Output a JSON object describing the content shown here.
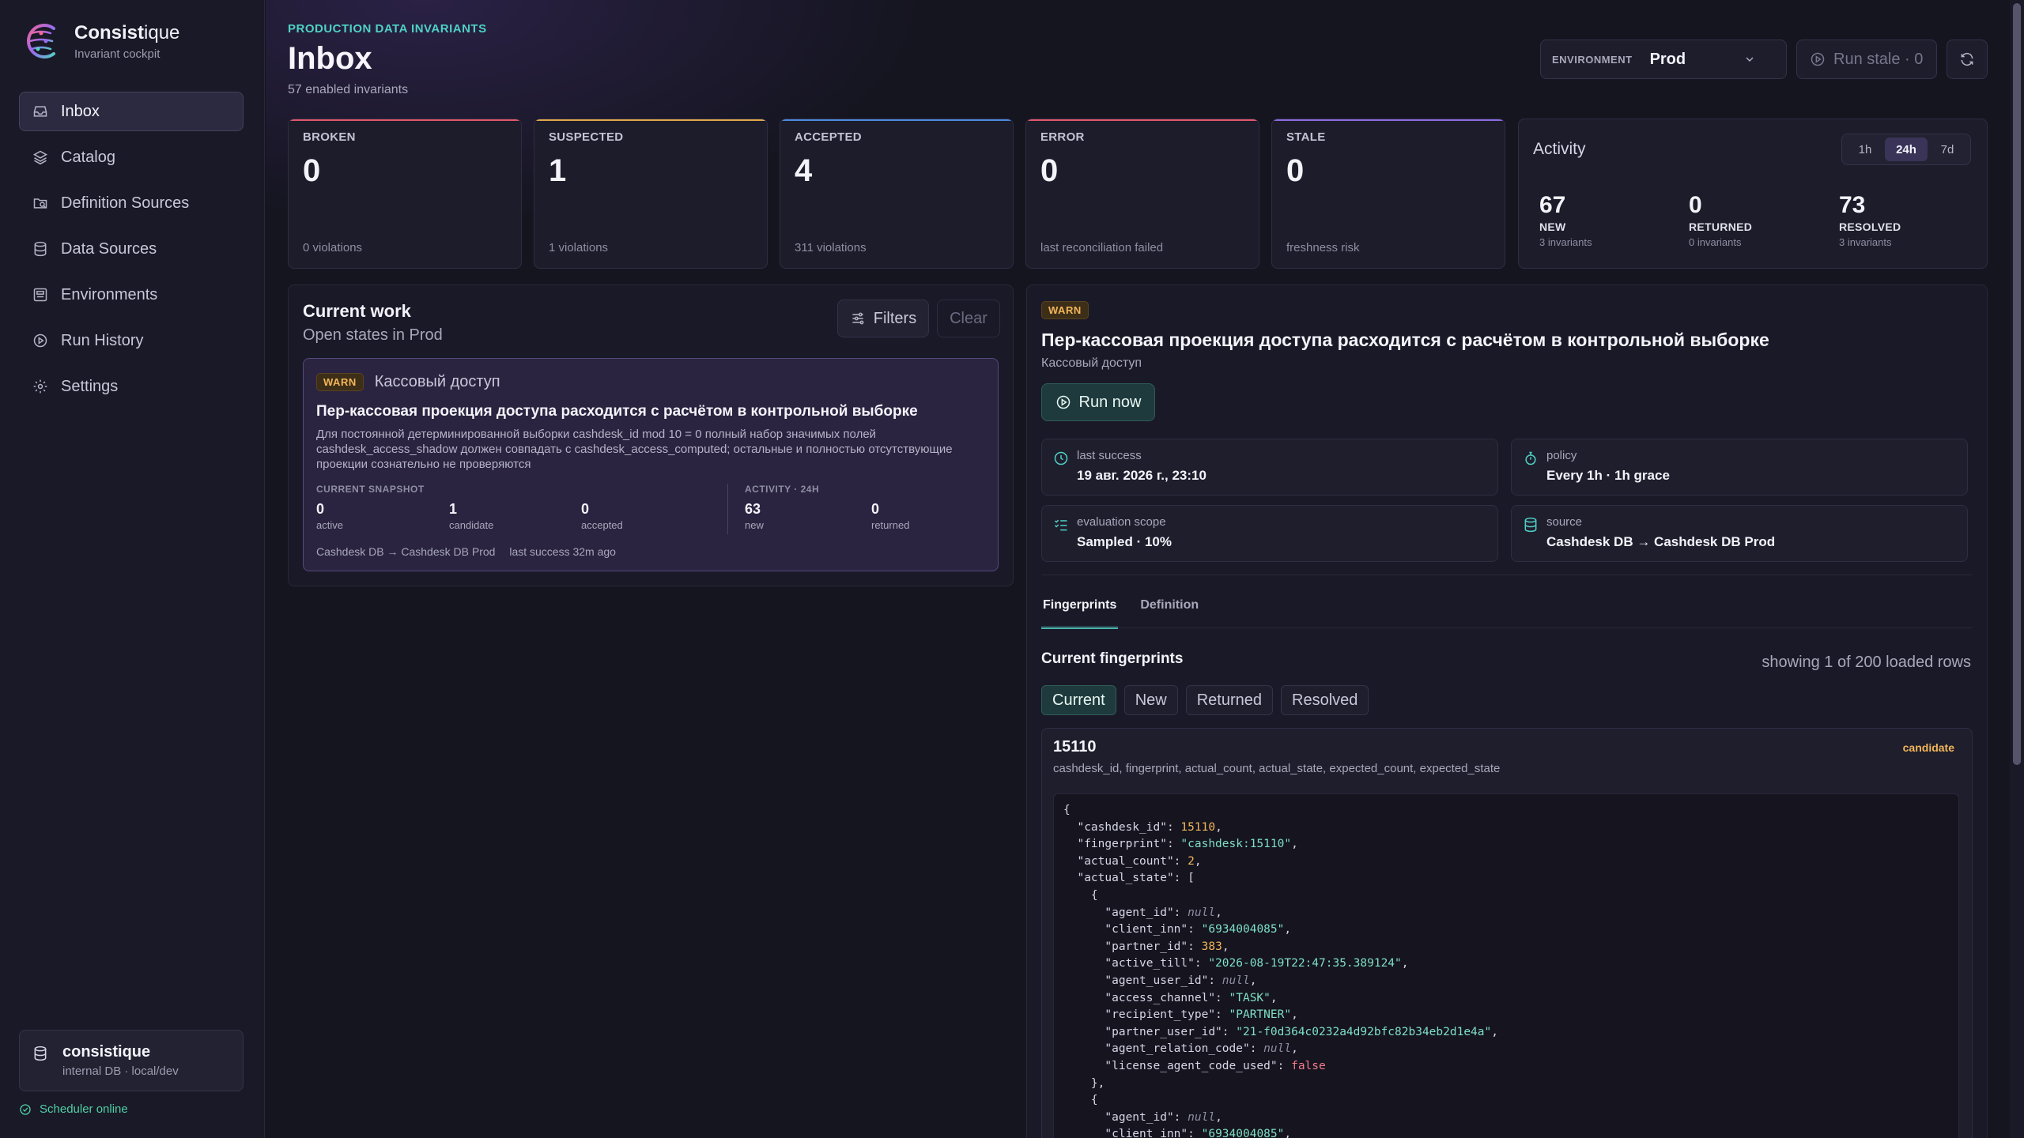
{
  "brand": {
    "name_bold": "Consist",
    "name_rest": "ique",
    "subtitle": "Invariant cockpit"
  },
  "sidebar": {
    "items": [
      {
        "label": "Inbox",
        "icon": "inbox-icon",
        "active": true
      },
      {
        "label": "Catalog",
        "icon": "layers-icon"
      },
      {
        "label": "Definition Sources",
        "icon": "folder-search-icon"
      },
      {
        "label": "Data Sources",
        "icon": "database-icon"
      },
      {
        "label": "Environments",
        "icon": "server-icon"
      },
      {
        "label": "Run History",
        "icon": "play-circle-icon"
      },
      {
        "label": "Settings",
        "icon": "gear-icon"
      }
    ],
    "db": {
      "title": "consistique",
      "subtitle": "internal DB · local/dev"
    },
    "scheduler": "Scheduler online"
  },
  "header": {
    "eyebrow": "PRODUCTION DATA INVARIANTS",
    "title": "Inbox",
    "subtitle": "57 enabled invariants",
    "env_label": "ENVIRONMENT",
    "env_value": "Prod",
    "run_stale": "Run stale · 0"
  },
  "stats": [
    {
      "label": "BROKEN",
      "value": "0",
      "foot": "0 violations",
      "accent": "#e0566b"
    },
    {
      "label": "SUSPECTED",
      "value": "1",
      "foot": "1 violations",
      "accent": "#e0a84a"
    },
    {
      "label": "ACCEPTED",
      "value": "4",
      "foot": "311 violations",
      "accent": "#4a8ae0"
    },
    {
      "label": "ERROR",
      "value": "0",
      "foot": "last reconciliation failed",
      "accent": "#e0566b"
    },
    {
      "label": "STALE",
      "value": "0",
      "foot": "freshness risk",
      "accent": "#8a6ae0"
    }
  ],
  "activity": {
    "title": "Activity",
    "ranges": [
      "1h",
      "24h",
      "7d"
    ],
    "selected_range": "24h",
    "columns": [
      {
        "value": "67",
        "label": "NEW",
        "sub": "3 invariants"
      },
      {
        "value": "0",
        "label": "RETURNED",
        "sub": "0 invariants"
      },
      {
        "value": "73",
        "label": "RESOLVED",
        "sub": "3 invariants"
      }
    ]
  },
  "work": {
    "title": "Current work",
    "subtitle": "Open states in Prod",
    "filters": "Filters",
    "clear": "Clear",
    "item": {
      "badge": "WARN",
      "category": "Кассовый доступ",
      "title": "Пер-кассовая проекция доступа расходится с расчётом в контрольной выборке",
      "description": "Для постоянной детерминированной выборки cashdesk_id mod 10 = 0 полный набор значимых полей cashdesk_access_shadow должен совпадать с cashdesk_access_computed; остальные и полностью отсутствующие проекции сознательно не проверяются",
      "snapshot_label": "CURRENT SNAPSHOT",
      "snapshot": [
        {
          "value": "0",
          "label": "active"
        },
        {
          "value": "1",
          "label": "candidate"
        },
        {
          "value": "0",
          "label": "accepted"
        }
      ],
      "activity_label": "ACTIVITY · 24H",
      "activity": [
        {
          "value": "63",
          "label": "new"
        },
        {
          "value": "0",
          "label": "returned"
        }
      ],
      "source": "Cashdesk DB → Cashdesk DB Prod",
      "last_success": "last success 32m ago"
    }
  },
  "detail": {
    "badge": "WARN",
    "title": "Пер-кассовая проекция доступа расходится с расчётом в контрольной выборке",
    "category": "Кассовый доступ",
    "run_now": "Run now",
    "meta": [
      {
        "label": "last success",
        "value": "19 авг. 2026 г., 23:10",
        "icon": "clock-icon"
      },
      {
        "label": "policy",
        "value": "Every 1h · 1h grace",
        "icon": "timer-icon"
      },
      {
        "label": "evaluation scope",
        "value": "Sampled · 10%",
        "icon": "list-check-icon"
      },
      {
        "label": "source",
        "value": "Cashdesk DB → Cashdesk DB Prod",
        "icon": "database-icon"
      }
    ],
    "tabs": [
      "Fingerprints",
      "Definition"
    ],
    "active_tab": "Fingerprints",
    "fingerprints": {
      "title": "Current fingerprints",
      "count": "showing 1 of 200 loaded rows",
      "filters": [
        "Current",
        "New",
        "Returned",
        "Resolved"
      ],
      "active_filter": "Current",
      "row": {
        "id": "15110",
        "status": "candidate",
        "keys": "cashdesk_id, fingerprint, actual_count, actual_state, expected_count, expected_state",
        "json_lines": [
          "{",
          "  \"cashdesk_id\": 15110,",
          "  \"fingerprint\": \"cashdesk:15110\",",
          "  \"actual_count\": 2,",
          "  \"actual_state\": [",
          "    {",
          "      \"agent_id\": null,",
          "      \"client_inn\": \"6934004085\",",
          "      \"partner_id\": 383,",
          "      \"active_till\": \"2026-08-19T22:47:35.389124\",",
          "      \"agent_user_id\": null,",
          "      \"access_channel\": \"TASK\",",
          "      \"recipient_type\": \"PARTNER\",",
          "      \"partner_user_id\": \"21-f0d364c0232a4d92bfc82b34eb2d1e4a\",",
          "      \"agent_relation_code\": null,",
          "      \"license_agent_code_used\": false",
          "    },",
          "    {",
          "      \"agent_id\": null,",
          "      \"client_inn\": \"6934004085\","
        ]
      }
    }
  }
}
